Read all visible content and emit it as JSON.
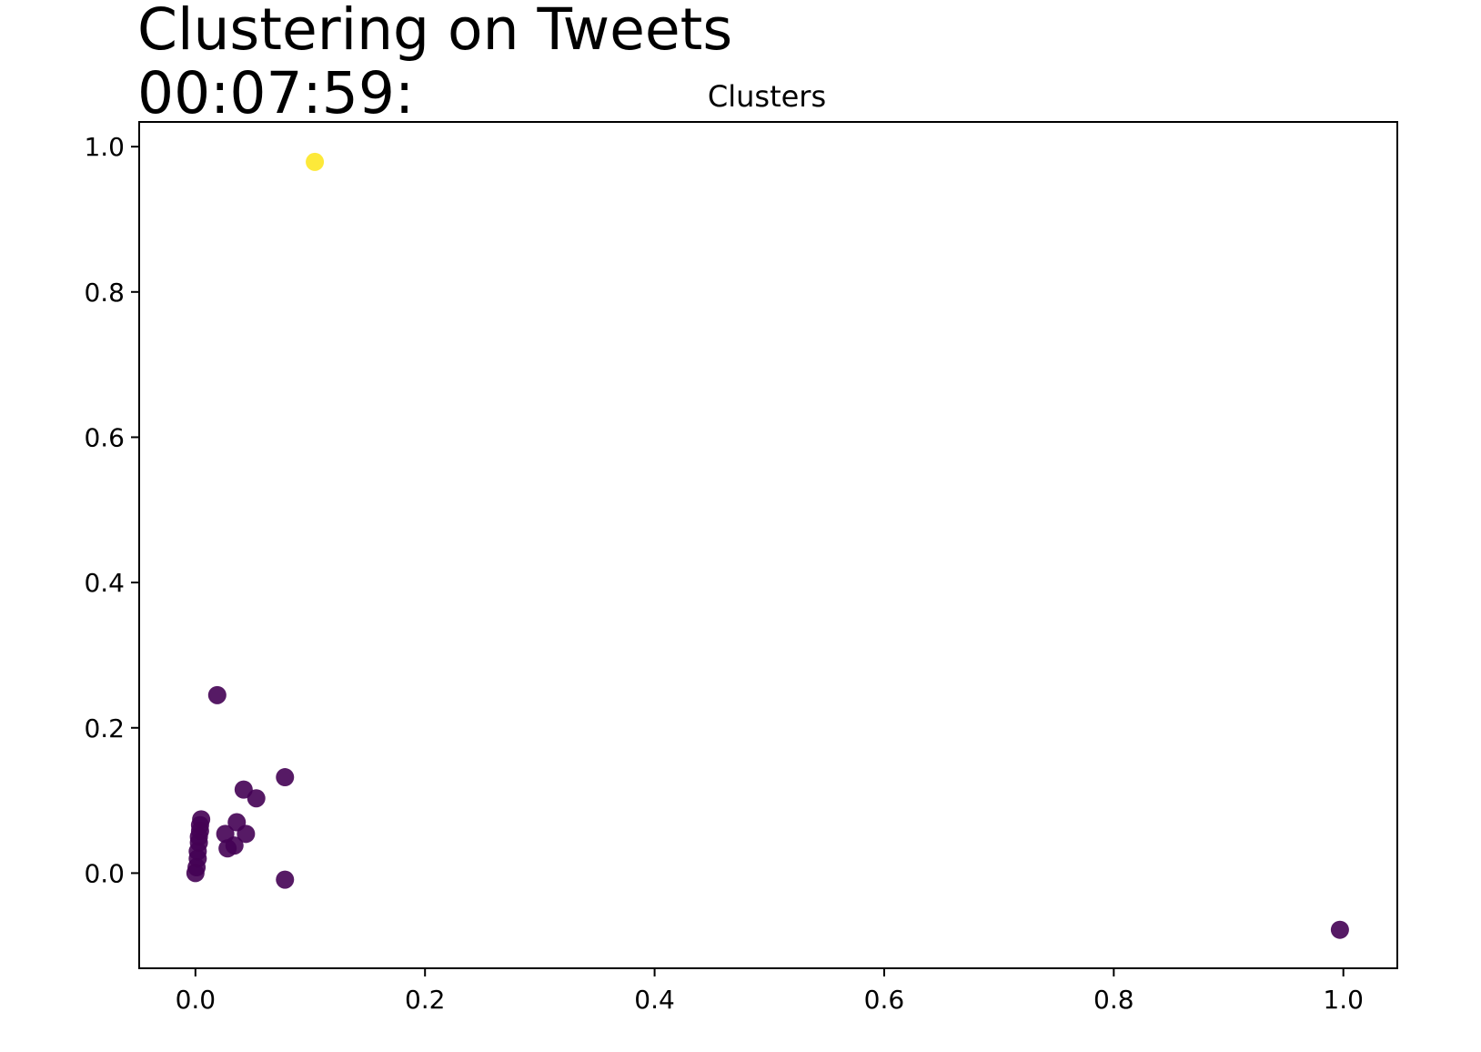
{
  "figure": {
    "title_line1": "Clustering on Tweets",
    "title_line2": "00:07:59:"
  },
  "chart_data": {
    "type": "scatter",
    "title": "Clusters",
    "xlabel": "",
    "ylabel": "",
    "xlim": [
      -0.049,
      1.047
    ],
    "ylim": [
      -0.131,
      1.034
    ],
    "xticks": [
      "0.0",
      "0.2",
      "0.4",
      "0.6",
      "0.8",
      "1.0"
    ],
    "yticks": [
      "0.0",
      "0.2",
      "0.4",
      "0.6",
      "0.8",
      "1.0"
    ],
    "grid": false,
    "legend": "none",
    "colors": {
      "cluster_0": "#440154",
      "cluster_1": "#fde725",
      "marker_alpha": 0.9
    },
    "points": [
      {
        "x": 0.104,
        "y": 0.979,
        "cluster": 1
      },
      {
        "x": 0.019,
        "y": 0.245,
        "cluster": 0
      },
      {
        "x": 0.078,
        "y": 0.132,
        "cluster": 0
      },
      {
        "x": 0.042,
        "y": 0.115,
        "cluster": 0
      },
      {
        "x": 0.053,
        "y": 0.103,
        "cluster": 0
      },
      {
        "x": 0.005,
        "y": 0.074,
        "cluster": 0
      },
      {
        "x": 0.004,
        "y": 0.066,
        "cluster": 0
      },
      {
        "x": 0.036,
        "y": 0.07,
        "cluster": 0
      },
      {
        "x": 0.004,
        "y": 0.058,
        "cluster": 0
      },
      {
        "x": 0.003,
        "y": 0.05,
        "cluster": 0
      },
      {
        "x": 0.026,
        "y": 0.054,
        "cluster": 0
      },
      {
        "x": 0.044,
        "y": 0.054,
        "cluster": 0
      },
      {
        "x": 0.003,
        "y": 0.042,
        "cluster": 0
      },
      {
        "x": 0.034,
        "y": 0.038,
        "cluster": 0
      },
      {
        "x": 0.028,
        "y": 0.034,
        "cluster": 0
      },
      {
        "x": 0.002,
        "y": 0.03,
        "cluster": 0
      },
      {
        "x": 0.002,
        "y": 0.02,
        "cluster": 0
      },
      {
        "x": 0.001,
        "y": 0.008,
        "cluster": 0
      },
      {
        "x": 0.0,
        "y": 0.0,
        "cluster": 0
      },
      {
        "x": 0.078,
        "y": -0.009,
        "cluster": 0
      },
      {
        "x": 0.997,
        "y": -0.078,
        "cluster": 0
      }
    ]
  }
}
